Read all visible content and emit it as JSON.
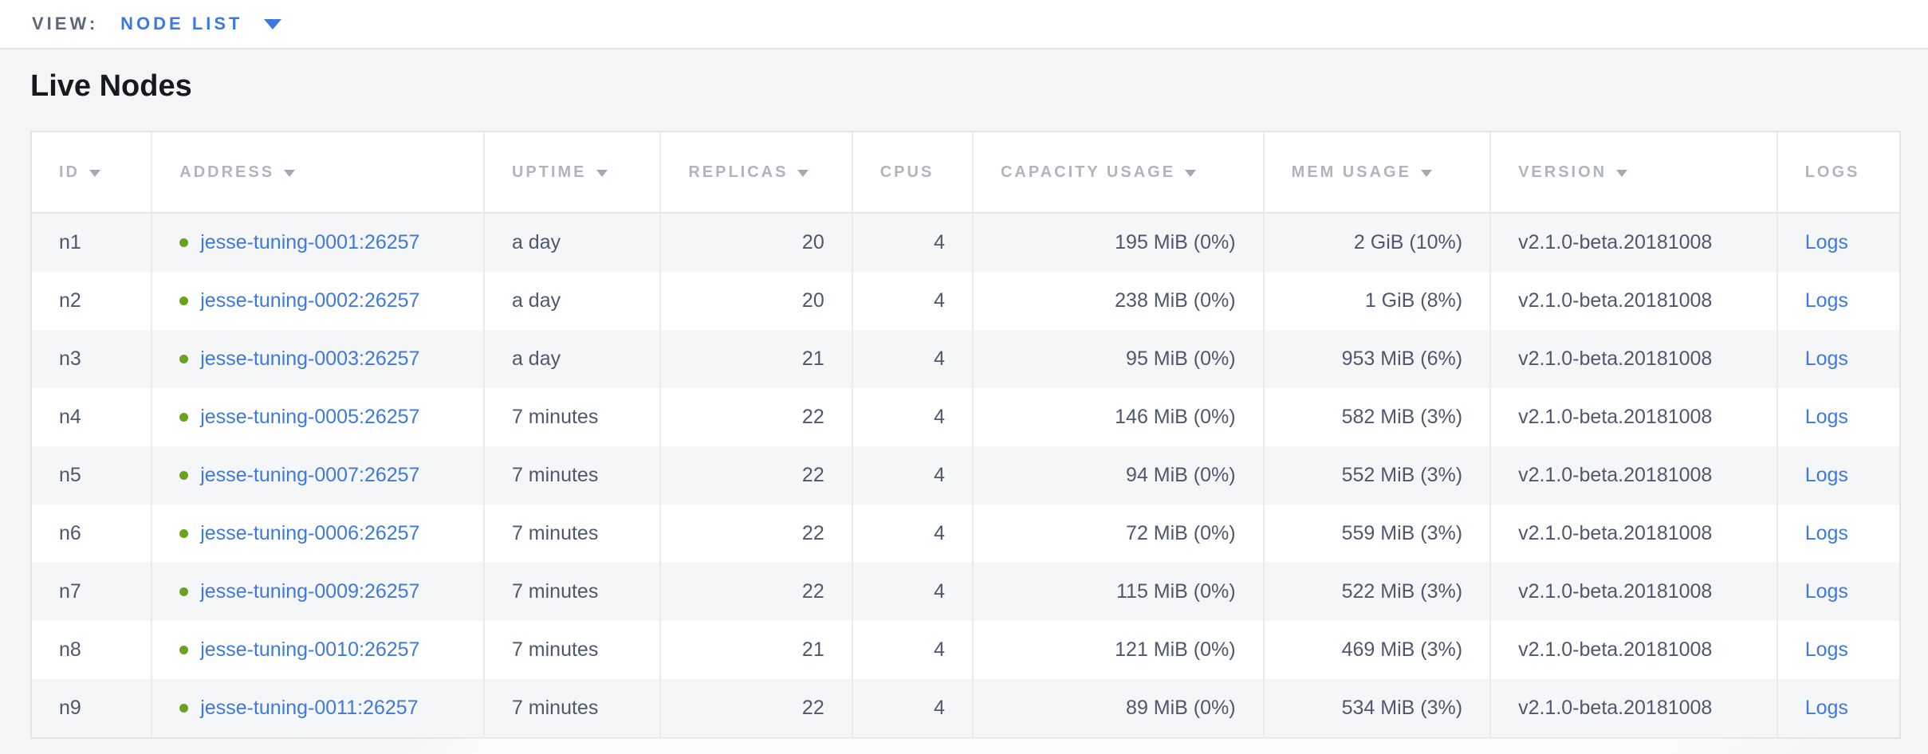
{
  "view_bar": {
    "label": "VIEW:",
    "selected": "NODE LIST"
  },
  "page": {
    "title": "Live Nodes"
  },
  "table": {
    "columns": [
      {
        "key": "id",
        "label": "ID",
        "sortable": true
      },
      {
        "key": "address",
        "label": "ADDRESS",
        "sortable": true
      },
      {
        "key": "uptime",
        "label": "UPTIME",
        "sortable": true
      },
      {
        "key": "replicas",
        "label": "REPLICAS",
        "sortable": true
      },
      {
        "key": "cpus",
        "label": "CPUS",
        "sortable": false
      },
      {
        "key": "capacity_usage",
        "label": "CAPACITY USAGE",
        "sortable": true
      },
      {
        "key": "mem_usage",
        "label": "MEM USAGE",
        "sortable": true
      },
      {
        "key": "version",
        "label": "VERSION",
        "sortable": true
      },
      {
        "key": "logs",
        "label": "LOGS",
        "sortable": false
      }
    ],
    "rows": [
      {
        "id": "n1",
        "address": "jesse-tuning-0001:26257",
        "uptime": "a day",
        "replicas": "20",
        "cpus": "4",
        "capacity_usage": "195 MiB (0%)",
        "mem_usage": "2 GiB (10%)",
        "version": "v2.1.0-beta.20181008",
        "logs": "Logs"
      },
      {
        "id": "n2",
        "address": "jesse-tuning-0002:26257",
        "uptime": "a day",
        "replicas": "20",
        "cpus": "4",
        "capacity_usage": "238 MiB (0%)",
        "mem_usage": "1 GiB (8%)",
        "version": "v2.1.0-beta.20181008",
        "logs": "Logs"
      },
      {
        "id": "n3",
        "address": "jesse-tuning-0003:26257",
        "uptime": "a day",
        "replicas": "21",
        "cpus": "4",
        "capacity_usage": "95 MiB (0%)",
        "mem_usage": "953 MiB (6%)",
        "version": "v2.1.0-beta.20181008",
        "logs": "Logs"
      },
      {
        "id": "n4",
        "address": "jesse-tuning-0005:26257",
        "uptime": "7 minutes",
        "replicas": "22",
        "cpus": "4",
        "capacity_usage": "146 MiB (0%)",
        "mem_usage": "582 MiB (3%)",
        "version": "v2.1.0-beta.20181008",
        "logs": "Logs"
      },
      {
        "id": "n5",
        "address": "jesse-tuning-0007:26257",
        "uptime": "7 minutes",
        "replicas": "22",
        "cpus": "4",
        "capacity_usage": "94 MiB (0%)",
        "mem_usage": "552 MiB (3%)",
        "version": "v2.1.0-beta.20181008",
        "logs": "Logs"
      },
      {
        "id": "n6",
        "address": "jesse-tuning-0006:26257",
        "uptime": "7 minutes",
        "replicas": "22",
        "cpus": "4",
        "capacity_usage": "72 MiB (0%)",
        "mem_usage": "559 MiB (3%)",
        "version": "v2.1.0-beta.20181008",
        "logs": "Logs"
      },
      {
        "id": "n7",
        "address": "jesse-tuning-0009:26257",
        "uptime": "7 minutes",
        "replicas": "22",
        "cpus": "4",
        "capacity_usage": "115 MiB (0%)",
        "mem_usage": "522 MiB (3%)",
        "version": "v2.1.0-beta.20181008",
        "logs": "Logs"
      },
      {
        "id": "n8",
        "address": "jesse-tuning-0010:26257",
        "uptime": "7 minutes",
        "replicas": "21",
        "cpus": "4",
        "capacity_usage": "121 MiB (0%)",
        "mem_usage": "469 MiB (3%)",
        "version": "v2.1.0-beta.20181008",
        "logs": "Logs"
      },
      {
        "id": "n9",
        "address": "jesse-tuning-0011:26257",
        "uptime": "7 minutes",
        "replicas": "22",
        "cpus": "4",
        "capacity_usage": "89 MiB (0%)",
        "mem_usage": "534 MiB (3%)",
        "version": "v2.1.0-beta.20181008",
        "logs": "Logs"
      }
    ]
  },
  "colors": {
    "page_bg": "#f5f5f6",
    "accent_blue": "#3e78e0",
    "status_green": "#6aa21e",
    "header_text": "#b0b4bd",
    "cell_text": "#4e586c"
  }
}
